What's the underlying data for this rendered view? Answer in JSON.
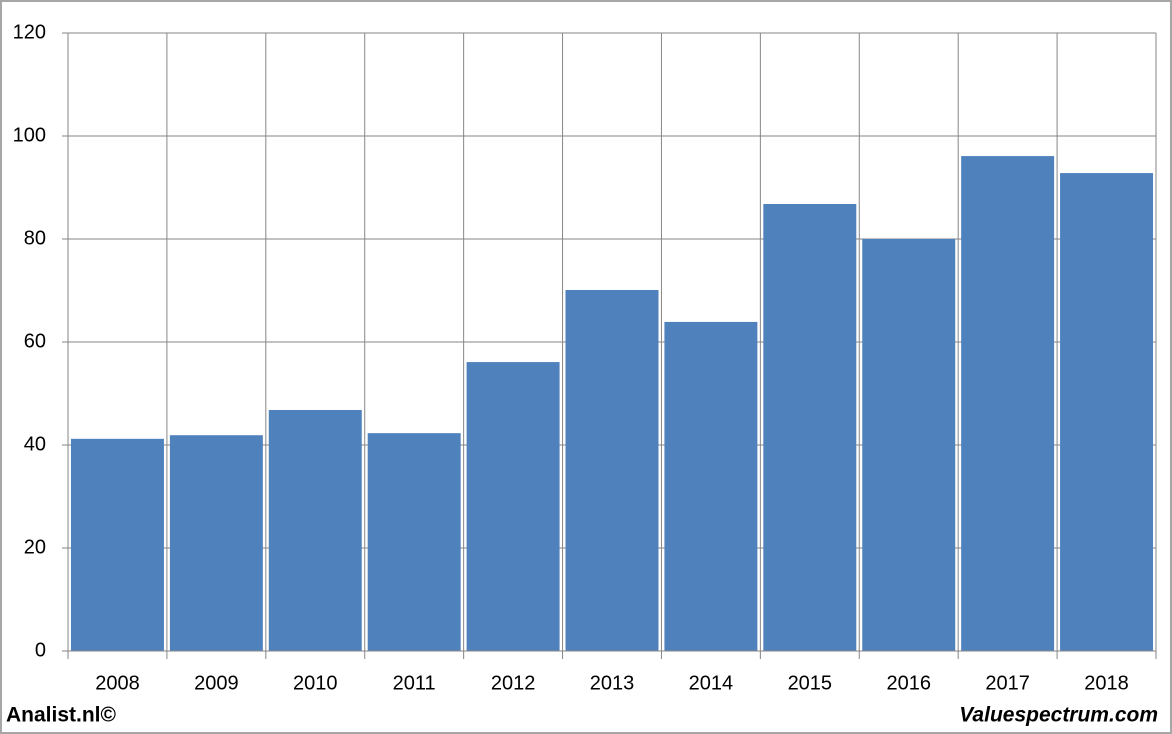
{
  "chart_data": {
    "type": "bar",
    "categories": [
      "2008",
      "2009",
      "2010",
      "2011",
      "2012",
      "2013",
      "2014",
      "2015",
      "2016",
      "2017",
      "2018"
    ],
    "values": [
      41.2,
      41.9,
      46.8,
      42.3,
      56.1,
      70.1,
      63.9,
      86.8,
      80.0,
      96.1,
      92.8
    ],
    "color": "#4f81bd",
    "ylim": [
      0,
      120
    ],
    "yticks": [
      0,
      20,
      40,
      60,
      80,
      100,
      120
    ],
    "grid": true
  },
  "footer": {
    "left": "Analist.nl©",
    "right": "Valuespectrum.com"
  }
}
